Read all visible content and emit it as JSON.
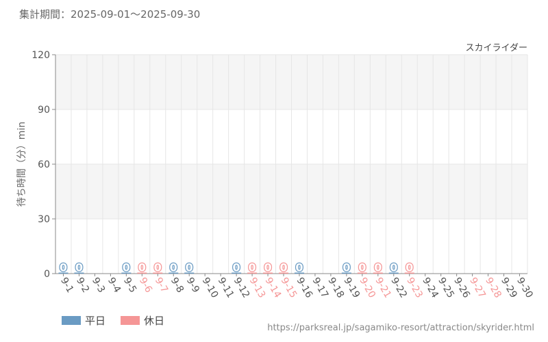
{
  "header": {
    "period_label": "集計期間：2025-09-01～2025-09-30"
  },
  "colors": {
    "weekday": "#6a9bc3",
    "holiday": "#f59696",
    "band": "#f5f5f5",
    "grid": "#e6e6e6",
    "axis": "#888888",
    "tick_text": "#555555"
  },
  "legend": {
    "weekday_label": "平日",
    "holiday_label": "休日"
  },
  "source_url": "https://parksreal.jp/sagamiko-resort/attraction/skyrider.html",
  "chart_data": {
    "type": "bar",
    "title": "スカイライダー",
    "ylabel": "待ち時間（分）min",
    "ylim": [
      0,
      120
    ],
    "yticks": [
      0,
      30,
      60,
      90,
      120
    ],
    "grid": true,
    "legend_position": "bottom-left",
    "categories": [
      "9-1",
      "9-2",
      "9-3",
      "9-4",
      "9-5",
      "9-6",
      "9-7",
      "9-8",
      "9-9",
      "9-10",
      "9-11",
      "9-12",
      "9-13",
      "9-14",
      "9-15",
      "9-16",
      "9-17",
      "9-18",
      "9-19",
      "9-20",
      "9-21",
      "9-22",
      "9-23",
      "9-24",
      "9-25",
      "9-26",
      "9-27",
      "9-28",
      "9-29",
      "9-30"
    ],
    "day_types": [
      "weekday",
      "weekday",
      "weekday",
      "weekday",
      "weekday",
      "holiday",
      "holiday",
      "weekday",
      "weekday",
      "weekday",
      "weekday",
      "weekday",
      "holiday",
      "holiday",
      "holiday",
      "weekday",
      "weekday",
      "weekday",
      "weekday",
      "holiday",
      "holiday",
      "weekday",
      "holiday",
      "weekday",
      "weekday",
      "weekday",
      "holiday",
      "holiday",
      "weekday",
      "weekday"
    ],
    "values": [
      0,
      0,
      null,
      null,
      0,
      0,
      0,
      0,
      0,
      null,
      null,
      0,
      0,
      0,
      0,
      0,
      null,
      null,
      0,
      0,
      0,
      0,
      0,
      null,
      null,
      null,
      null,
      null,
      null,
      null
    ],
    "data_labels": [
      "0",
      "0",
      "",
      "",
      "0",
      "0",
      "0",
      "0",
      "0",
      "",
      "",
      "0",
      "0",
      "0",
      "0",
      "0",
      "",
      "",
      "0",
      "0",
      "0",
      "0",
      "0",
      "",
      "",
      "",
      "",
      "",
      "",
      ""
    ]
  }
}
